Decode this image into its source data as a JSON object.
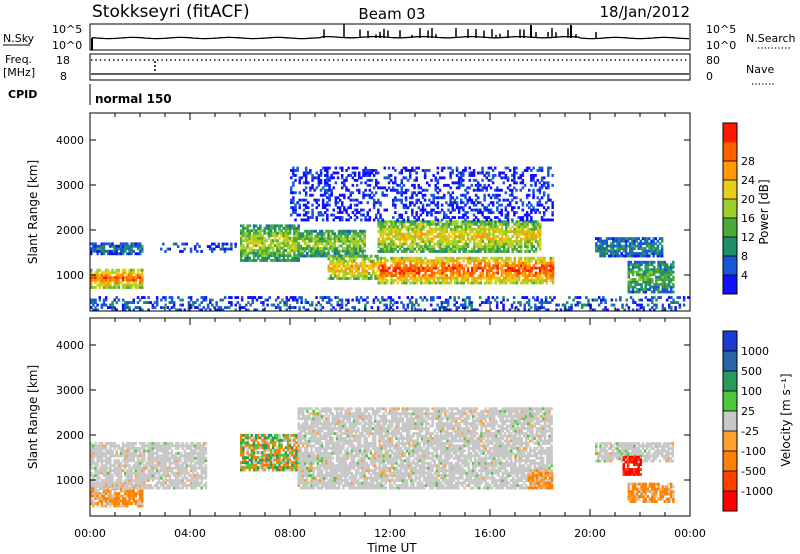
{
  "header": {
    "station": "Stokkseyri (fitACF)",
    "beam": "Beam 03",
    "date": "18/Jan/2012"
  },
  "top_panels": {
    "nsky_label": "N.Sky",
    "nsky_ticks": [
      "10^5",
      "10^0"
    ],
    "nsearch_label": "N.Search",
    "nsearch_ticks": [
      "10^5",
      "10^0"
    ],
    "freq_label": "Freq.",
    "freq_unit": "[MHz]",
    "freq_ticks": [
      "18",
      "8"
    ],
    "nave_label": "Nave",
    "nave_ticks": [
      "80",
      "0"
    ],
    "cpid_label": "CPID",
    "cpid_value": "normal 150"
  },
  "chart_data": [
    {
      "type": "heatmap",
      "parameter": "Power",
      "ylabel": "Slant Range [km]",
      "xlabel": "Time UT",
      "x_ticks": [
        "00:00",
        "04:00",
        "08:00",
        "12:00",
        "16:00",
        "20:00",
        "00:00"
      ],
      "xlim_hours": [
        0,
        24
      ],
      "y_ticks": [
        1000,
        2000,
        3000,
        4000
      ],
      "ylim": [
        200,
        4600
      ],
      "colorbar": {
        "label": "Power [dB]",
        "ticks": [
          4,
          8,
          12,
          16,
          20,
          24,
          28
        ],
        "colors": [
          "#1010ff",
          "#1858d8",
          "#208e6a",
          "#4caa3c",
          "#9cd02a",
          "#e8cf15",
          "#ff9a00",
          "#ff6000",
          "#ff1800"
        ]
      },
      "echo_regions": [
        {
          "t": [
            0.0,
            2.1
          ],
          "r": [
            700,
            1100
          ],
          "level": 0.85
        },
        {
          "t": [
            0.0,
            2.1
          ],
          "r": [
            1450,
            1700
          ],
          "level": 0.25
        },
        {
          "t": [
            2.8,
            5.8
          ],
          "r": [
            1500,
            1700
          ],
          "level": 0.15
        },
        {
          "t": [
            6.0,
            8.3
          ],
          "r": [
            1300,
            2100
          ],
          "level": 0.55
        },
        {
          "t": [
            8.3,
            11.0
          ],
          "r": [
            1400,
            2000
          ],
          "level": 0.5
        },
        {
          "t": [
            9.5,
            11.5
          ],
          "r": [
            900,
            1400
          ],
          "level": 0.7
        },
        {
          "t": [
            11.5,
            18.5
          ],
          "r": [
            800,
            1400
          ],
          "level": 0.9
        },
        {
          "t": [
            11.5,
            18.0
          ],
          "r": [
            1500,
            2200
          ],
          "level": 0.65
        },
        {
          "t": [
            8.0,
            18.5
          ],
          "r": [
            2200,
            3400
          ],
          "level": 0.1
        },
        {
          "t": [
            20.2,
            22.9
          ],
          "r": [
            1400,
            1800
          ],
          "level": 0.3
        },
        {
          "t": [
            21.5,
            23.3
          ],
          "r": [
            600,
            1300
          ],
          "level": 0.4
        },
        {
          "t": [
            0.0,
            24.0
          ],
          "r": [
            200,
            500
          ],
          "level": 0.2
        }
      ]
    },
    {
      "type": "heatmap",
      "parameter": "Velocity",
      "ylabel": "Slant Range [km]",
      "xlabel": "Time UT",
      "x_ticks": [
        "00:00",
        "04:00",
        "08:00",
        "12:00",
        "16:00",
        "20:00",
        "00:00"
      ],
      "xlim_hours": [
        0,
        24
      ],
      "y_ticks": [
        1000,
        2000,
        3000,
        4000
      ],
      "ylim": [
        200,
        4600
      ],
      "colorbar": {
        "label": "Velocity [m s⁻¹]",
        "ticks": [
          "1000",
          "500",
          "100",
          "25",
          "-25",
          "-100",
          "-500",
          "-1000"
        ],
        "colors": [
          "#1c3cd0",
          "#2864a8",
          "#2a9a5a",
          "#4cc838",
          "#c8c8c8",
          "#ffa030",
          "#ff8000",
          "#ff4000",
          "#ff0000"
        ]
      },
      "echo_regions": [
        {
          "t": [
            0.0,
            2.1
          ],
          "r": [
            400,
            900
          ],
          "class": "negative"
        },
        {
          "t": [
            0.0,
            4.6
          ],
          "r": [
            800,
            1800
          ],
          "class": "ground"
        },
        {
          "t": [
            6.0,
            8.3
          ],
          "r": [
            1200,
            2000
          ],
          "class": "mixed"
        },
        {
          "t": [
            8.3,
            18.5
          ],
          "r": [
            800,
            2600
          ],
          "class": "ground"
        },
        {
          "t": [
            17.5,
            18.5
          ],
          "r": [
            800,
            1200
          ],
          "class": "negative"
        },
        {
          "t": [
            20.2,
            23.3
          ],
          "r": [
            1400,
            1800
          ],
          "class": "ground"
        },
        {
          "t": [
            21.3,
            22.0
          ],
          "r": [
            1100,
            1500
          ],
          "class": "strong-negative"
        },
        {
          "t": [
            21.5,
            23.3
          ],
          "r": [
            500,
            900
          ],
          "class": "negative"
        }
      ]
    }
  ]
}
